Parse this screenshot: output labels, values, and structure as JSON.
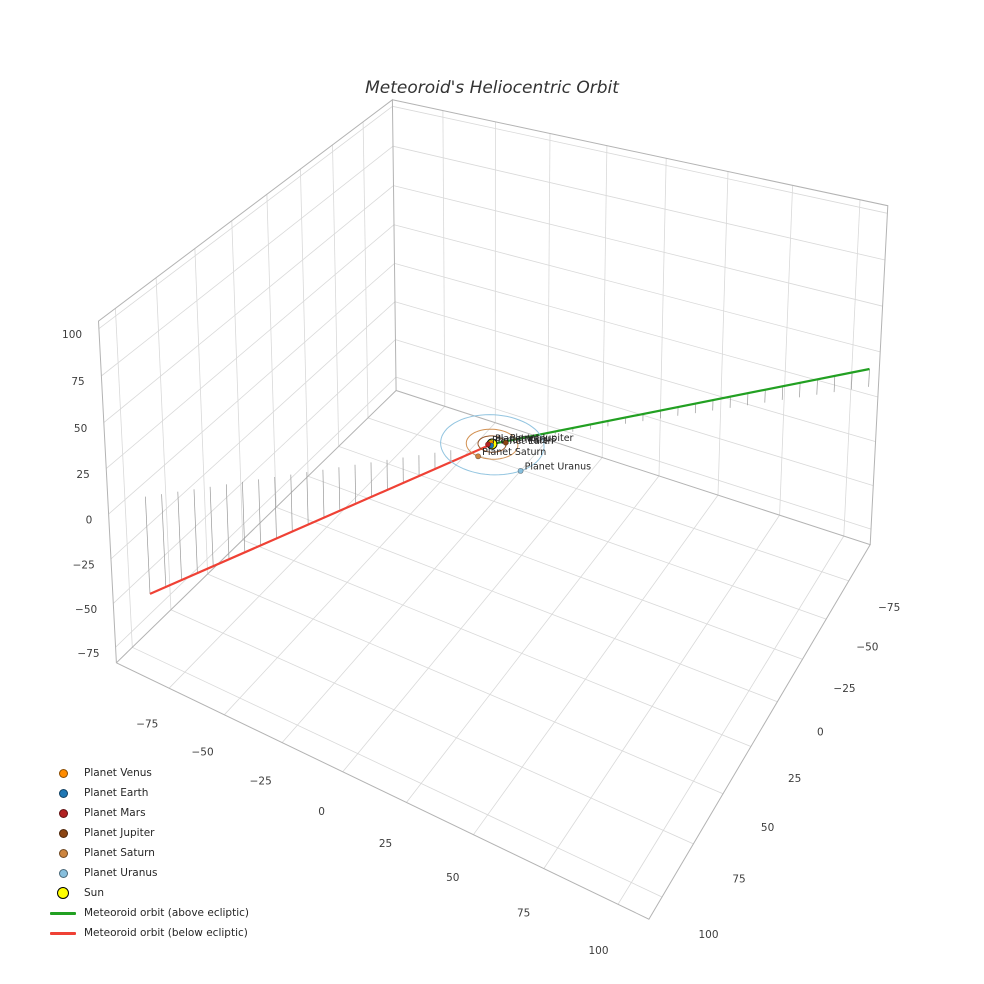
{
  "chart_data": {
    "type": "line",
    "projection": "3d",
    "title": "Meteoroid's Heliocentric Orbit",
    "axes": {
      "x_tick_values": [
        -75,
        -50,
        -25,
        0,
        25,
        50,
        75,
        100
      ],
      "x_tick_labels": [
        "−75",
        "−50",
        "−25",
        "0",
        "25",
        "50",
        "75",
        "100"
      ],
      "y_tick_values": [
        -75,
        -50,
        -25,
        0,
        25,
        50,
        75,
        100
      ],
      "y_tick_labels": [
        "−75",
        "−50",
        "−25",
        "0",
        "25",
        "50",
        "75",
        "100"
      ],
      "z_tick_values": [
        -75,
        -50,
        -25,
        0,
        25,
        50,
        75,
        100
      ],
      "z_tick_labels": [
        "−75",
        "−50",
        "−25",
        "0",
        "25",
        "50",
        "75",
        "100"
      ],
      "xlim": [
        -100,
        110
      ],
      "ylim": [
        -100,
        110
      ],
      "zlim": [
        -84,
        104
      ],
      "grid": true,
      "grid_color": "#d9d9d9",
      "edge_color": "#b3b3b3",
      "tick_label_color": "#3d3d3d"
    },
    "sun": {
      "label": "Sun",
      "color": "#ffff00",
      "edge_color": "#000000",
      "position": [
        0,
        0,
        0
      ]
    },
    "planets": [
      {
        "name": "Planet Venus",
        "color": "#ff8c00",
        "orbit_radius_au": 0.72,
        "angle_deg": 210
      },
      {
        "name": "Planet Earth",
        "color": "#1f77b4",
        "orbit_radius_au": 1.0,
        "angle_deg": 80
      },
      {
        "name": "Planet Mars",
        "color": "#b22222",
        "orbit_radius_au": 1.52,
        "angle_deg": 140
      },
      {
        "name": "Planet Jupiter",
        "color": "#8b4513",
        "orbit_radius_au": 5.2,
        "angle_deg": -40
      },
      {
        "name": "Planet Saturn",
        "color": "#cd853f",
        "orbit_radius_au": 9.58,
        "angle_deg": 95
      },
      {
        "name": "Planet Uranus",
        "color": "#87bfdd",
        "orbit_radius_au": 19.2,
        "angle_deg": 30
      }
    ],
    "meteoroid_orbit": {
      "above_ecliptic": {
        "label": "Meteoroid orbit (above ecliptic)",
        "color": "#22a022",
        "from": [
          0,
          0,
          0
        ],
        "to": [
          105,
          -105,
          10
        ]
      },
      "below_ecliptic": {
        "label": "Meteoroid orbit (below ecliptic)",
        "color": "#ef4135",
        "from": [
          -94.5,
          94.5,
          -55
        ],
        "to": [
          0,
          0,
          0
        ]
      },
      "stem_color": "#999999",
      "stems_per_side": 20
    },
    "legend": [
      {
        "label": "Planet Venus",
        "marker": "dot",
        "color": "#ff8c00"
      },
      {
        "label": "Planet Earth",
        "marker": "dot",
        "color": "#1f77b4"
      },
      {
        "label": "Planet Mars",
        "marker": "dot",
        "color": "#b22222"
      },
      {
        "label": "Planet Jupiter",
        "marker": "dot",
        "color": "#8b4513"
      },
      {
        "label": "Planet Saturn",
        "marker": "dot",
        "color": "#cd853f"
      },
      {
        "label": "Planet Uranus",
        "marker": "dot",
        "color": "#87bfdd"
      },
      {
        "label": "Sun",
        "marker": "dot-large",
        "color": "#ffff00",
        "edge": "#000000"
      },
      {
        "label": "Meteoroid orbit (above ecliptic)",
        "marker": "line",
        "color": "#22a022"
      },
      {
        "label": "Meteoroid orbit (below ecliptic)",
        "marker": "line",
        "color": "#ef4135"
      }
    ]
  }
}
